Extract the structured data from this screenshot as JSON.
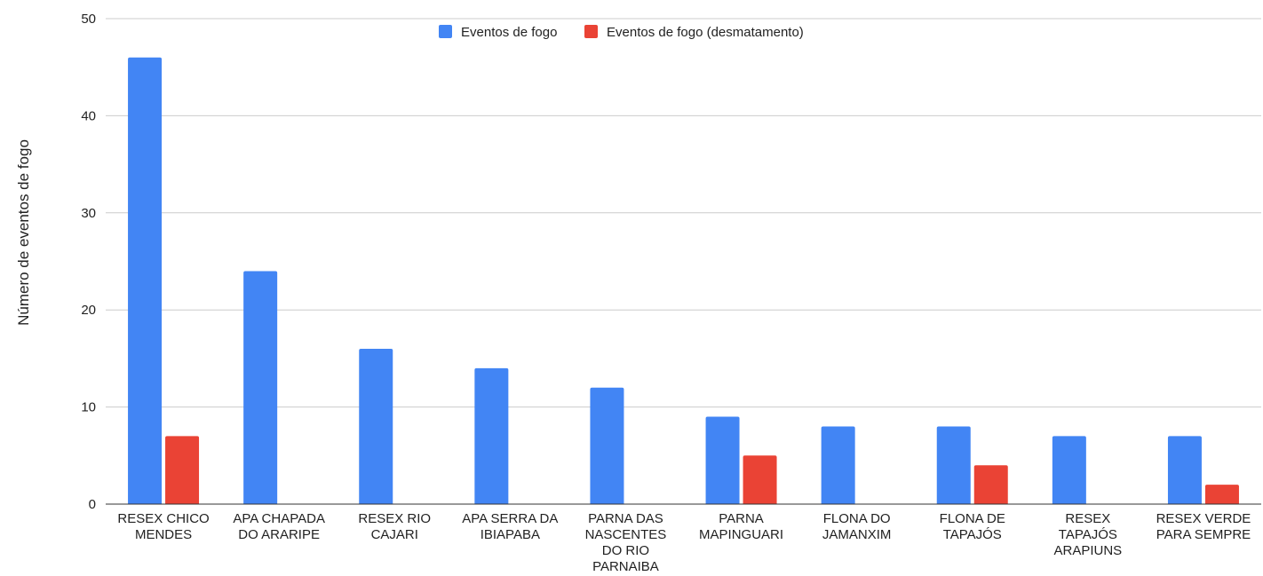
{
  "chart_data": {
    "type": "bar",
    "title": "",
    "xlabel": "",
    "ylabel": "Número de eventos de fogo",
    "ylim": [
      0,
      50
    ],
    "yticks": [
      0,
      10,
      20,
      30,
      40,
      50
    ],
    "grid": true,
    "legend_position": "top-center",
    "categories": [
      [
        "RESEX CHICO",
        "MENDES"
      ],
      [
        "APA CHAPADA",
        "DO ARARIPE"
      ],
      [
        "RESEX RIO",
        "CAJARI"
      ],
      [
        "APA SERRA DA",
        "IBIAPABA"
      ],
      [
        "PARNA DAS",
        "NASCENTES",
        "DO RIO",
        "PARNAIBA"
      ],
      [
        "PARNA",
        "MAPINGUARI"
      ],
      [
        "FLONA DO",
        "JAMANXIM"
      ],
      [
        "FLONA DE",
        "TAPAJÓS"
      ],
      [
        "RESEX",
        "TAPAJÓS",
        "ARAPIUNS"
      ],
      [
        "RESEX VERDE",
        "PARA SEMPRE"
      ]
    ],
    "series": [
      {
        "name": "Eventos de fogo",
        "color": "#4285f4",
        "values": [
          46,
          24,
          16,
          14,
          12,
          9,
          8,
          8,
          7,
          7
        ]
      },
      {
        "name": "Eventos de fogo (desmatamento)",
        "color": "#ea4335",
        "values": [
          7,
          0,
          0,
          0,
          0,
          5,
          0,
          4,
          0,
          2
        ]
      }
    ]
  }
}
